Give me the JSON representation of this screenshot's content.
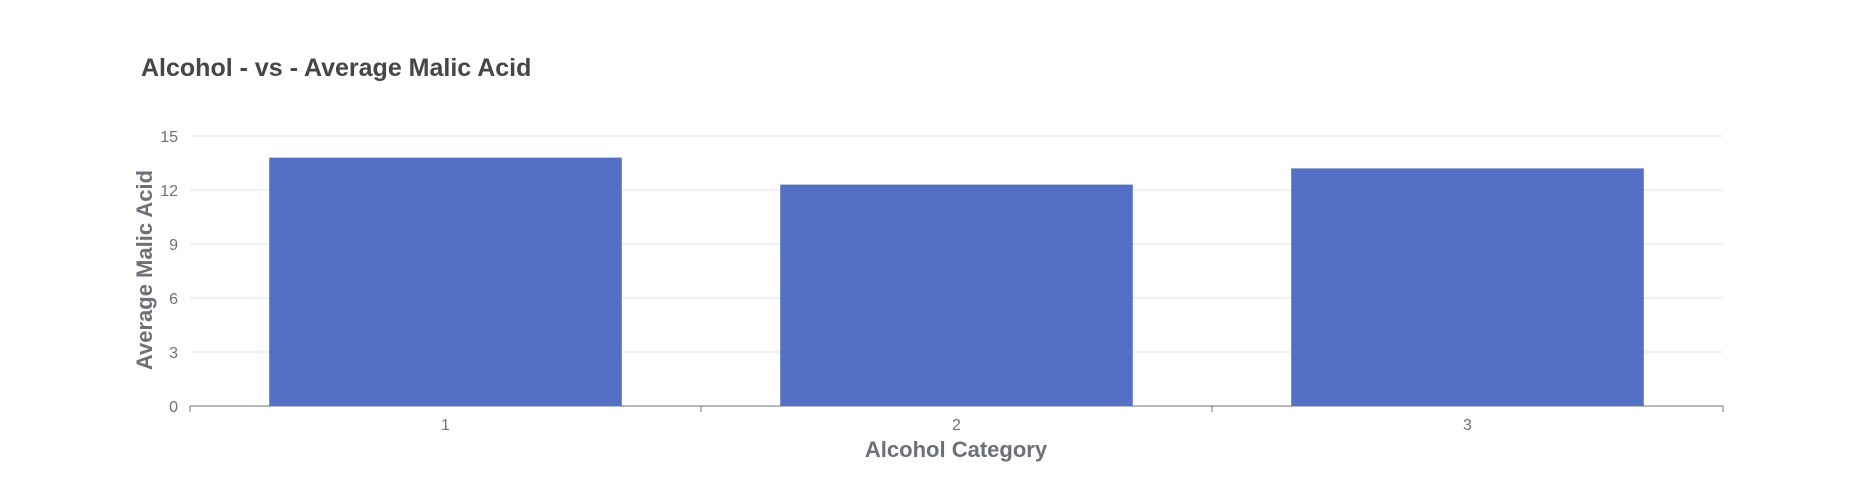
{
  "chart_data": {
    "type": "bar",
    "title": "Alcohol - vs - Average Malic Acid",
    "xlabel": "Alcohol Category",
    "ylabel": "Average Malic Acid",
    "categories": [
      "1",
      "2",
      "3"
    ],
    "values": [
      13.8,
      12.3,
      13.2
    ],
    "ylim": [
      0,
      15
    ],
    "yticks": [
      "0",
      "3",
      "6",
      "9",
      "12",
      "15"
    ],
    "grid": true,
    "legend": "none",
    "colors": {
      "bar": "#5470c6",
      "grid": "#e0e6f1",
      "axis": "#6e7079",
      "title": "#464646"
    }
  }
}
